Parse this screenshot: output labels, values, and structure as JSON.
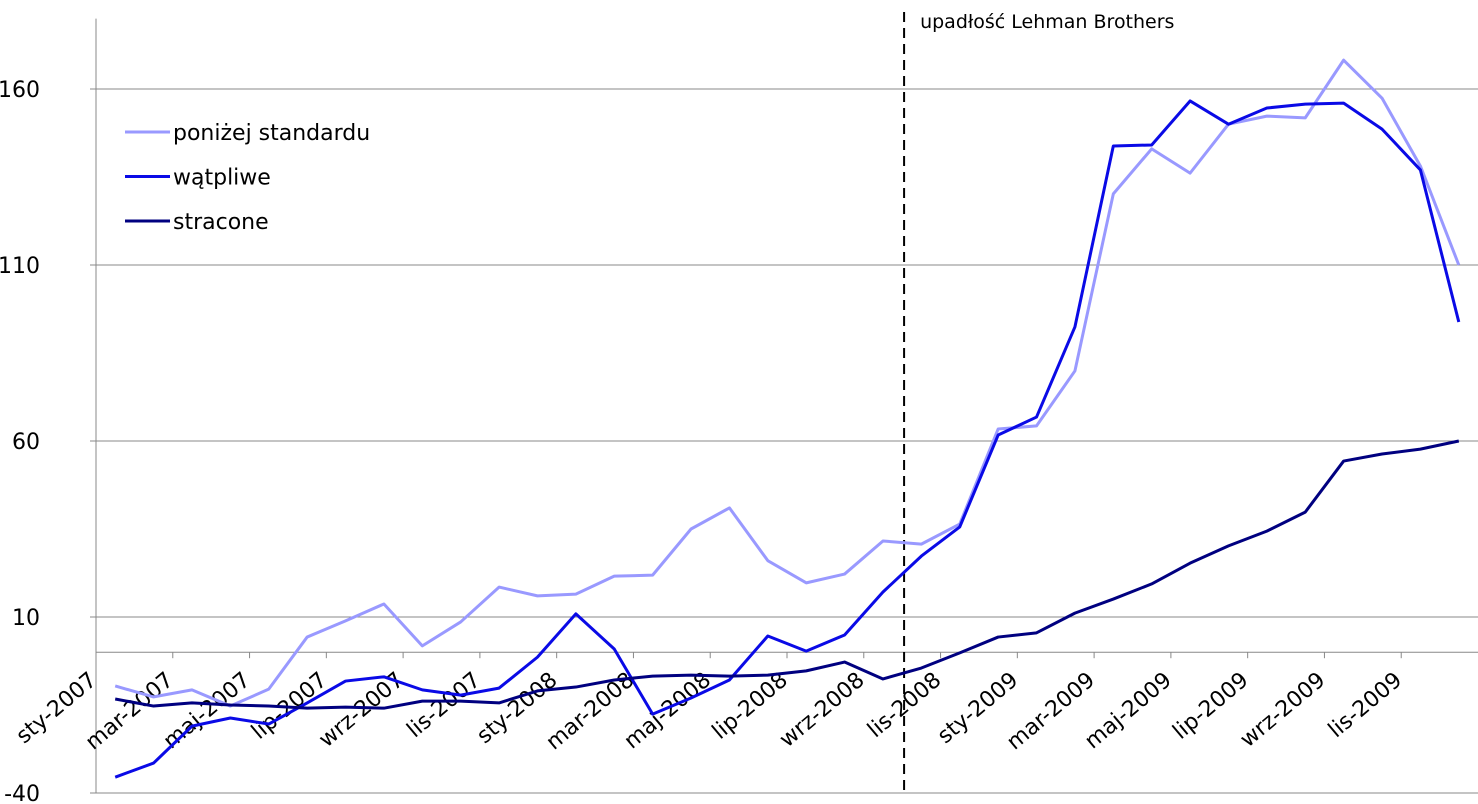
{
  "chart_data": {
    "type": "line",
    "categories": [
      "sty-2007",
      null,
      "mar-2007",
      null,
      "maj-2007",
      null,
      "lip-2007",
      null,
      "wrz-2007",
      null,
      "lis-2007",
      null,
      "sty-2008",
      null,
      "mar-2008",
      null,
      "maj-2008",
      null,
      "lip-2008",
      null,
      "wrz-2008",
      null,
      "lis-2008",
      null,
      "sty-2009",
      null,
      "mar-2009",
      null,
      "maj-2009",
      null,
      "lip-2009",
      null,
      "wrz-2009",
      null,
      "lis-2009",
      null
    ],
    "series": [
      {
        "name": "poniżej standardu",
        "color": "#9999ff",
        "values": [
          -9.6,
          -12.7,
          -10.7,
          -15.3,
          -10.5,
          4.3,
          8.9,
          13.7,
          1.8,
          8.6,
          18.5,
          16,
          16.5,
          21.6,
          21.9,
          35,
          41,
          26,
          19.7,
          22.2,
          31.6,
          30.7,
          36.4,
          63.4,
          64.3,
          79.9,
          130.2,
          143,
          136.1,
          150,
          152.3,
          151.8,
          168.2,
          157.4,
          138.1,
          110
        ]
      },
      {
        "name": "wątpliwe",
        "color": "#0a0ae6",
        "values": [
          -35.5,
          -31.5,
          -21,
          -18.7,
          -20.4,
          -14.4,
          -8.2,
          -7,
          -10.7,
          -12.2,
          -10.2,
          -1.4,
          10.9,
          0.9,
          -17.6,
          -13,
          -7.9,
          4.6,
          0.3,
          4.9,
          17.1,
          27.3,
          35.6,
          61.7,
          66.8,
          92.4,
          143.8,
          144.1,
          156.6,
          150,
          154.6,
          155.7,
          156,
          148.6,
          137,
          93.8
        ]
      },
      {
        "name": "stracone",
        "color": "#000080",
        "values": [
          -13.3,
          -15.3,
          -14.4,
          -15,
          -15.3,
          -15.9,
          -15.6,
          -15.9,
          -13.9,
          -13.9,
          -14.4,
          -11,
          -9.9,
          -7.9,
          -6.8,
          -6.5,
          -6.8,
          -6.5,
          -5.3,
          -2.8,
          -7.6,
          -4.5,
          -0.2,
          4.3,
          5.5,
          11.1,
          15.1,
          19.4,
          25.3,
          30.2,
          34.4,
          39.8,
          54.3,
          56.3,
          57.7,
          60
        ]
      }
    ],
    "ylim": [
      -40,
      180
    ],
    "yticks": [
      -40,
      10,
      60,
      110,
      160
    ],
    "grid": true,
    "legend": "top-left",
    "annotations": [
      {
        "text": "upadłość Lehman Brothers",
        "at": "wrz-2008"
      }
    ]
  }
}
